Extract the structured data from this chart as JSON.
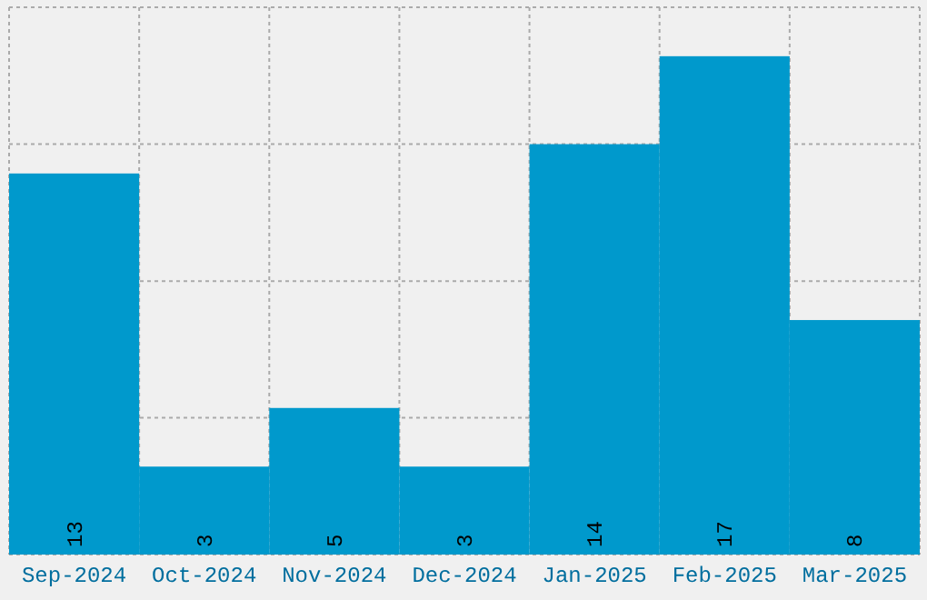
{
  "chart_data": {
    "type": "bar",
    "categories": [
      "Sep-2024",
      "Oct-2024",
      "Nov-2024",
      "Dec-2024",
      "Jan-2025",
      "Feb-2025",
      "Mar-2025"
    ],
    "values": [
      13,
      3,
      5,
      3,
      14,
      17,
      8
    ],
    "color": "#0099cc",
    "data_labels": true,
    "grid": true,
    "tick_labels": "x",
    "ylim": [
      0,
      18.67
    ],
    "yticks": [
      {
        "value": 0,
        "label": null
      },
      {
        "value": 4.67,
        "label": null
      },
      {
        "value": 9.33,
        "label": null
      },
      {
        "value": 14,
        "label": null
      },
      {
        "value": 18.67,
        "label": null
      }
    ]
  }
}
